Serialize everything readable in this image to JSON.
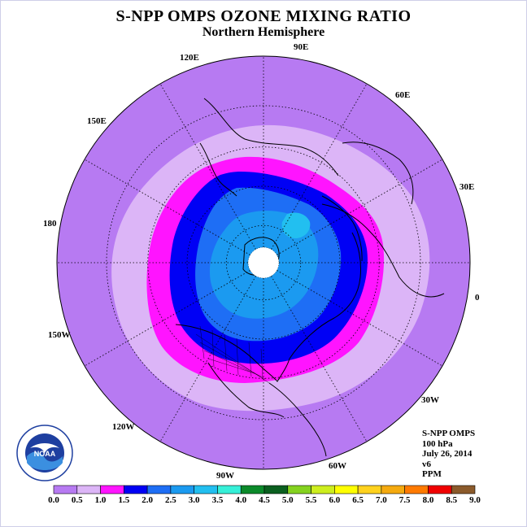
{
  "header": {
    "title": "S-NPP OMPS OZONE MIXING RATIO",
    "subtitle": "Northern Hemisphere"
  },
  "longitude_labels": {
    "lon_90e": "90E",
    "lon_60e": "60E",
    "lon_30e": "30E",
    "lon_0": "0",
    "lon_30w": "30W",
    "lon_60w": "60W",
    "lon_90w": "90W",
    "lon_120w": "120W",
    "lon_150w": "150W",
    "lon_180": "180",
    "lon_150e": "150E",
    "lon_120e": "120E"
  },
  "info": {
    "product": "S-NPP OMPS",
    "level": "100 hPa",
    "date": "July 26, 2014",
    "version": "v6",
    "units": "PPM"
  },
  "colorbar": {
    "ticks": [
      "0.0",
      "0.5",
      "1.0",
      "1.5",
      "2.0",
      "2.5",
      "3.0",
      "3.5",
      "4.0",
      "4.5",
      "5.0",
      "5.5",
      "6.0",
      "6.5",
      "7.0",
      "7.5",
      "8.0",
      "8.5",
      "9.0"
    ],
    "colors": [
      "#b77af2",
      "#dcb5f7",
      "#ff14ff",
      "#0000f5",
      "#1e6ef5",
      "#1b9af0",
      "#22bff0",
      "#36f0d8",
      "#0b8a2a",
      "#0a5f1f",
      "#84d21f",
      "#cdee1e",
      "#ffff00",
      "#ffd21e",
      "#f5aa0f",
      "#ff7a00",
      "#f00000",
      "#8b5a2b"
    ]
  },
  "chart_data": {
    "type": "heatmap",
    "title": "S-NPP OMPS OZONE MIXING RATIO",
    "subtitle": "Northern Hemisphere",
    "level": "100 hPa",
    "date": "July 26, 2014",
    "units": "PPM",
    "projection": "polar stereographic, North Pole centered",
    "contour_levels": [
      0.0,
      0.5,
      1.0,
      1.5,
      2.0,
      2.5,
      3.0,
      3.5,
      4.0,
      4.5,
      5.0,
      5.5,
      6.0,
      6.5,
      7.0,
      7.5,
      8.0,
      8.5,
      9.0
    ],
    "observed_bands_ppm": [
      "0.0-0.5",
      "0.5-1.0",
      "1.0-1.5",
      "1.5-2.0",
      "2.0-2.5",
      "2.5-3.0"
    ],
    "polar_region": "no data (white) near the pole"
  },
  "logo": {
    "text": "NOAA"
  },
  "colors": {
    "border": "#cfcfe8",
    "band_0_05": "#b77af2",
    "band_05_10": "#dcb5f7",
    "band_10_15": "#ff14ff",
    "band_15_20": "#0000f5",
    "band_20_25": "#1e6ef5",
    "band_25_30": "#1b9af0",
    "band_30_35": "#22bff0"
  }
}
